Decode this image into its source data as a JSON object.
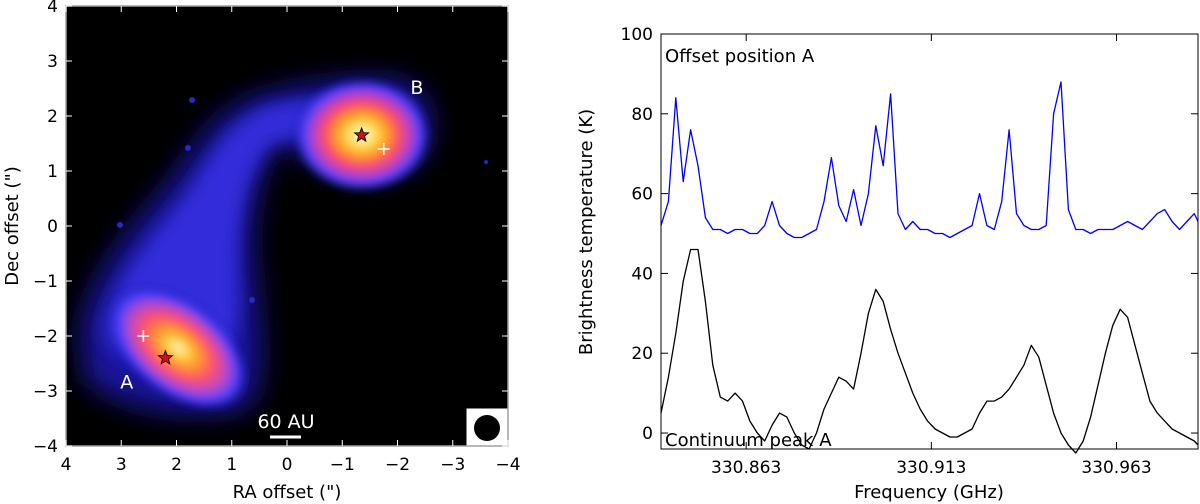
{
  "chart_data": [
    {
      "type": "heatmap",
      "xlabel": "RA offset (\")",
      "ylabel": "Dec offset (\")",
      "xlim": [
        4,
        -4
      ],
      "ylim": [
        -4,
        4
      ],
      "xticks": [
        "4",
        "3",
        "2",
        "1",
        "0",
        "−1",
        "−2",
        "−3",
        "−4"
      ],
      "yticks": [
        "4",
        "3",
        "2",
        "1",
        "0",
        "−1",
        "−2",
        "−3",
        "−4"
      ],
      "grid": false,
      "colormap": [
        "#000000",
        "#1010a0",
        "#4040ff",
        "#b040c0",
        "#ff4060",
        "#ff9020",
        "#ffe060",
        "#fffff0"
      ],
      "sources": [
        {
          "name": "A",
          "label_pos": [
            2.9,
            -2.95
          ],
          "star": [
            2.2,
            -2.4
          ],
          "cross": [
            2.6,
            -2.0
          ]
        },
        {
          "name": "B",
          "label_pos": [
            -2.35,
            2.4
          ],
          "star": [
            -1.35,
            1.65
          ],
          "cross": [
            -1.75,
            1.4
          ]
        }
      ],
      "scalebar_label": "60 AU",
      "star_color": "#cc1111",
      "cross_color": "#ffffff"
    },
    {
      "type": "line",
      "xlabel": "Frequency (GHz)",
      "ylabel": "Brightness temperature (K)",
      "xlim": [
        330.84,
        330.985
      ],
      "ylim": [
        -4,
        100
      ],
      "xticks": [
        330.863,
        330.913,
        330.963
      ],
      "xtick_labels": [
        "330.863",
        "330.913",
        "330.963"
      ],
      "yticks": [
        0,
        20,
        40,
        60,
        80,
        100
      ],
      "grid": false,
      "annotations": [
        "Offset position A",
        "Continuum peak A"
      ],
      "series": [
        {
          "name": "Offset position A",
          "color": "#0000ff",
          "x": [
            330.84,
            330.842,
            330.844,
            330.846,
            330.848,
            330.85,
            330.852,
            330.854,
            330.856,
            330.858,
            330.86,
            330.862,
            330.864,
            330.866,
            330.868,
            330.87,
            330.872,
            330.874,
            330.876,
            330.878,
            330.88,
            330.882,
            330.884,
            330.886,
            330.888,
            330.89,
            330.892,
            330.894,
            330.896,
            330.898,
            330.9,
            330.902,
            330.904,
            330.906,
            330.908,
            330.91,
            330.912,
            330.914,
            330.916,
            330.918,
            330.92,
            330.922,
            330.924,
            330.926,
            330.928,
            330.93,
            330.932,
            330.934,
            330.936,
            330.938,
            330.94,
            330.942,
            330.944,
            330.946,
            330.948,
            330.95,
            330.952,
            330.954,
            330.956,
            330.958,
            330.96,
            330.962,
            330.964,
            330.966,
            330.968,
            330.97,
            330.972,
            330.974,
            330.976,
            330.978,
            330.98,
            330.982,
            330.984,
            330.985
          ],
          "y": [
            52,
            58,
            84,
            63,
            76,
            67,
            54,
            51,
            51,
            50,
            51,
            51,
            50,
            50,
            52,
            58,
            52,
            50,
            49,
            49,
            50,
            51,
            58,
            69,
            57,
            53,
            61,
            52,
            60,
            77,
            67,
            85,
            55,
            51,
            53,
            51,
            51,
            50,
            50,
            49,
            50,
            51,
            52,
            60,
            52,
            51,
            58,
            76,
            55,
            52,
            51,
            51,
            52,
            80,
            88,
            56,
            51,
            51,
            50,
            51,
            51,
            51,
            52,
            53,
            52,
            51,
            53,
            55,
            56,
            53,
            51,
            53,
            55,
            53
          ]
        },
        {
          "name": "Continuum peak A",
          "color": "#000000",
          "x": [
            330.84,
            330.842,
            330.844,
            330.846,
            330.848,
            330.85,
            330.852,
            330.854,
            330.856,
            330.858,
            330.86,
            330.862,
            330.864,
            330.866,
            330.868,
            330.87,
            330.872,
            330.874,
            330.876,
            330.878,
            330.88,
            330.882,
            330.884,
            330.886,
            330.888,
            330.89,
            330.892,
            330.894,
            330.896,
            330.898,
            330.9,
            330.902,
            330.904,
            330.906,
            330.908,
            330.91,
            330.912,
            330.914,
            330.916,
            330.918,
            330.92,
            330.922,
            330.924,
            330.926,
            330.928,
            330.93,
            330.932,
            330.934,
            330.936,
            330.938,
            330.94,
            330.942,
            330.944,
            330.946,
            330.948,
            330.95,
            330.952,
            330.954,
            330.956,
            330.958,
            330.96,
            330.962,
            330.964,
            330.966,
            330.968,
            330.97,
            330.972,
            330.974,
            330.976,
            330.978,
            330.98,
            330.982,
            330.984,
            330.985
          ],
          "y": [
            5,
            14,
            25,
            38,
            46,
            46,
            33,
            17,
            9,
            8,
            10,
            8,
            3,
            0,
            -2,
            2,
            5,
            4,
            0,
            -3,
            -4,
            0,
            6,
            10,
            14,
            13,
            11,
            20,
            30,
            36,
            33,
            26,
            20,
            15,
            10,
            6,
            3,
            1,
            0,
            -1,
            -1,
            0,
            1,
            5,
            8,
            8,
            9,
            11,
            14,
            17,
            22,
            19,
            12,
            5,
            0,
            -3,
            -5,
            -2,
            4,
            12,
            20,
            27,
            31,
            29,
            22,
            15,
            8,
            5,
            3,
            1,
            0,
            -1,
            -2,
            -3
          ]
        }
      ]
    }
  ]
}
